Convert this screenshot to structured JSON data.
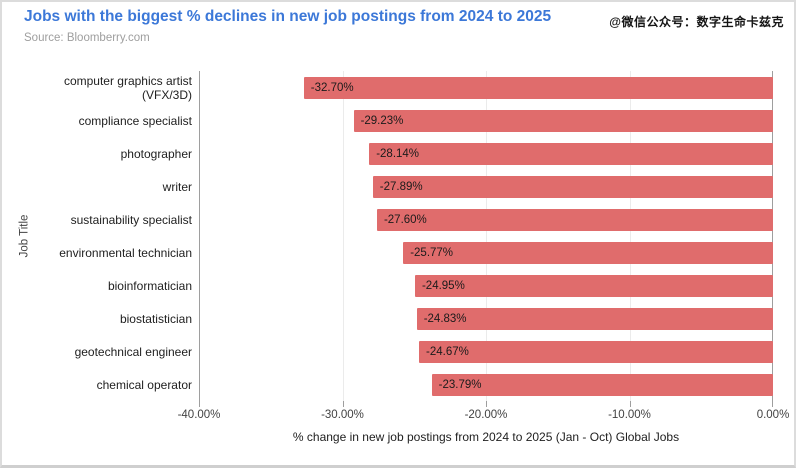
{
  "header": {
    "title": "Jobs with the biggest % declines in new job postings from 2024 to 2025",
    "source": "Source: Bloomberry.com",
    "watermark": "@微信公众号：数字生命卡兹克"
  },
  "colors": {
    "title_blue": "#3c78d8",
    "bar_red": "#e06c6c",
    "source_gray": "#9e9e9e"
  },
  "chart_data": {
    "type": "bar",
    "orientation": "horizontal",
    "title": "Jobs with the biggest % declines in new job postings from 2024 to 2025",
    "subtitle": "Source: Bloomberry.com",
    "categories": [
      "computer graphics artist (VFX/3D)",
      "compliance specialist",
      "photographer",
      "writer",
      "sustainability specialist",
      "environmental technician",
      "bioinformatician",
      "biostatistician",
      "geotechnical engineer",
      "chemical operator"
    ],
    "values": [
      -32.7,
      -29.23,
      -28.14,
      -27.89,
      -27.6,
      -25.77,
      -24.95,
      -24.83,
      -24.67,
      -23.79
    ],
    "value_labels": [
      "-32.70%",
      "-29.23%",
      "-28.14%",
      "-27.89%",
      "-27.60%",
      "-25.77%",
      "-24.95%",
      "-24.83%",
      "-24.67%",
      "-23.79%"
    ],
    "xlabel": "% change in new job postings from 2024 to 2025 (Jan - Oct) Global Jobs",
    "ylabel": "Job Title",
    "xlim": [
      -40,
      0
    ],
    "x_ticks": [
      -40,
      -30,
      -20,
      -10,
      0
    ],
    "x_tick_labels": [
      "-40.00%",
      "-30.00%",
      "-20.00%",
      "-10.00%",
      "0.00%"
    ],
    "grid": true,
    "legend": false,
    "bar_color": "#e06c6c"
  }
}
